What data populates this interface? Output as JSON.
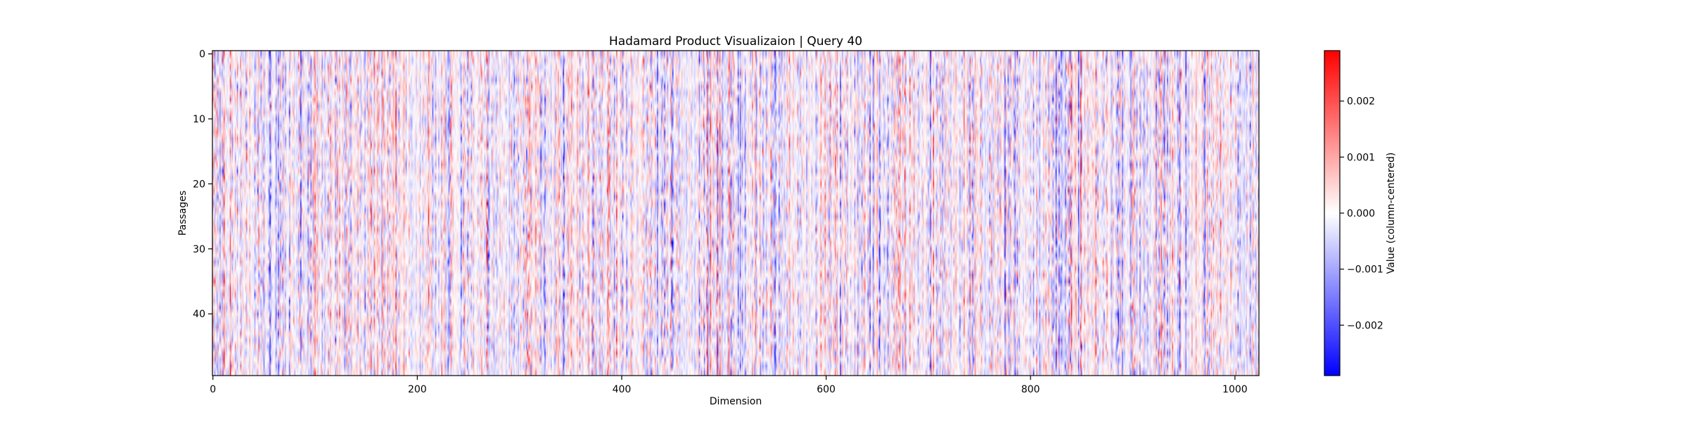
{
  "chart_data": {
    "type": "heatmap",
    "title": "Hadamard Product Visualizaion | Query 40",
    "xlabel": "Dimension",
    "ylabel": "Passages",
    "n_cols": 1024,
    "n_rows": 50,
    "xlim": [
      0,
      1024
    ],
    "ylim": [
      0,
      50
    ],
    "x_ticks": [
      0,
      200,
      400,
      600,
      800,
      1000
    ],
    "y_ticks": [
      0,
      10,
      20,
      30,
      40
    ],
    "colormap": "bwr",
    "colorbar": {
      "label": "Value (column-centered)",
      "vmin": -0.0029,
      "vmax": 0.0029,
      "ticks": [
        -0.002,
        -0.001,
        0.0,
        0.001,
        0.002
      ],
      "tick_labels": [
        "−0.002",
        "−0.001",
        "0.000",
        "0.001",
        "0.002"
      ]
    },
    "colors": {
      "low": "#0000ff",
      "mid": "#ffffff",
      "high": "#ff0000"
    },
    "grid": false
  }
}
